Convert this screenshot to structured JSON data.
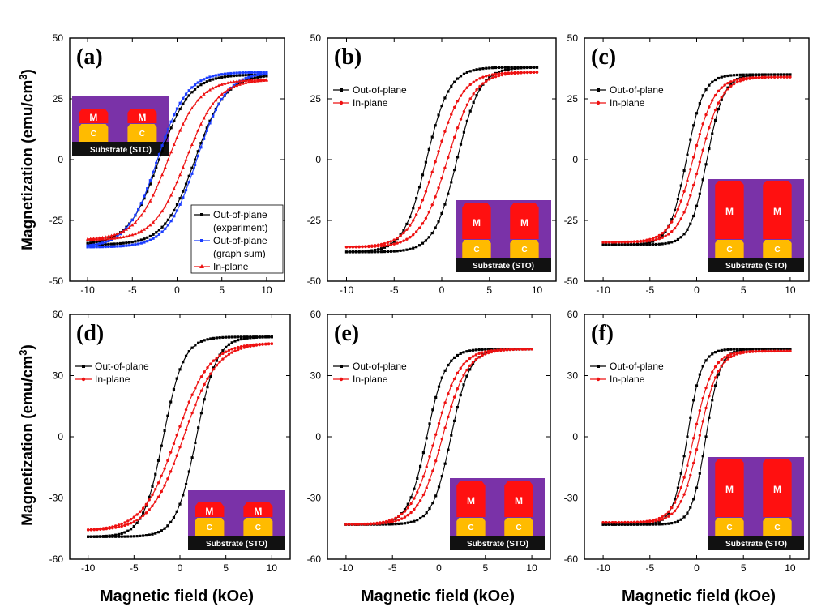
{
  "figure": {
    "ylabel_top": "Magnetization (emu/cm³)",
    "ylabel_bottom": "Magnetization (emu/cm³)",
    "xlabel": "Magnetic field (kOe)",
    "inset_labels": {
      "magnet": "M",
      "core": "C",
      "substrate": "Substrate (STO)"
    },
    "colors": {
      "out_of_plane": "#000000",
      "graph_sum": "#1a3cff",
      "in_plane": "#ee1111",
      "magnet": "#ff1010",
      "core": "#ffbb00",
      "matrix": "#7a32a8",
      "substrate": "#111111"
    }
  },
  "chart_data": [
    {
      "type": "line",
      "panel": "(a)",
      "xlim": [
        -12,
        12
      ],
      "ylim": [
        -50,
        50
      ],
      "xticks": [
        "-10",
        "-5",
        "0",
        "5",
        "10"
      ],
      "yticks": [
        "-50",
        "-25",
        "0",
        "25",
        "50"
      ],
      "inset": {
        "magnet_height": "small",
        "position": "top-left"
      },
      "series": [
        {
          "name": "Out-of-plane (experiment)",
          "legend_lines": [
            "Out-of-plane",
            "(experiment)"
          ],
          "color": "#000000",
          "marker": "square",
          "ms": 35,
          "hc": 2.0,
          "w": 3.4
        },
        {
          "name": "Out-of-plane (graph sum)",
          "legend_lines": [
            "Out-of-plane",
            "(graph sum)"
          ],
          "color": "#1a3cff",
          "marker": "square",
          "ms": 36,
          "hc": 2.2,
          "w": 3.3
        },
        {
          "name": "In-plane",
          "legend_lines": [
            "In-plane"
          ],
          "color": "#ee1111",
          "marker": "triangle",
          "ms": 33,
          "hc": 1.0,
          "w": 3.5
        }
      ]
    },
    {
      "type": "line",
      "panel": "(b)",
      "xlim": [
        -12,
        12
      ],
      "ylim": [
        -50,
        50
      ],
      "xticks": [
        "-10",
        "-5",
        "0",
        "5",
        "10"
      ],
      "yticks": [
        "-50",
        "-25",
        "0",
        "25",
        "50"
      ],
      "inset": {
        "magnet_height": "medium",
        "position": "bottom-right"
      },
      "series": [
        {
          "name": "Out-of-plane",
          "legend_lines": [
            "Out-of-plane"
          ],
          "color": "#000000",
          "marker": "square",
          "ms": 38,
          "hc": 1.6,
          "w": 2.4
        },
        {
          "name": "In-plane",
          "legend_lines": [
            "In-plane"
          ],
          "color": "#ee1111",
          "marker": "circle",
          "ms": 36,
          "hc": 0.6,
          "w": 2.8
        }
      ]
    },
    {
      "type": "line",
      "panel": "(c)",
      "xlim": [
        -12,
        12
      ],
      "ylim": [
        -50,
        50
      ],
      "xticks": [
        "-10",
        "-5",
        "0",
        "5",
        "10"
      ],
      "yticks": [
        "-50",
        "-25",
        "0",
        "25",
        "50"
      ],
      "inset": {
        "magnet_height": "large",
        "position": "bottom-right"
      },
      "series": [
        {
          "name": "Out-of-plane",
          "legend_lines": [
            "Out-of-plane"
          ],
          "color": "#000000",
          "marker": "square",
          "ms": 35,
          "hc": 1.1,
          "w": 1.8
        },
        {
          "name": "In-plane",
          "legend_lines": [
            "In-plane"
          ],
          "color": "#ee1111",
          "marker": "circle",
          "ms": 34,
          "hc": 0.4,
          "w": 2.3
        }
      ]
    },
    {
      "type": "line",
      "panel": "(d)",
      "xlim": [
        -12,
        12
      ],
      "ylim": [
        -60,
        60
      ],
      "xticks": [
        "-10",
        "-5",
        "0",
        "5",
        "10"
      ],
      "yticks": [
        "-60",
        "-30",
        "0",
        "30",
        "60"
      ],
      "inset": {
        "magnet_height": "small",
        "position": "bottom-right"
      },
      "series": [
        {
          "name": "Out-of-plane",
          "legend_lines": [
            "Out-of-plane"
          ],
          "color": "#000000",
          "marker": "square",
          "ms": 49,
          "hc": 1.8,
          "w": 2.2
        },
        {
          "name": "In-plane",
          "legend_lines": [
            "In-plane"
          ],
          "color": "#ee1111",
          "marker": "circle",
          "ms": 46,
          "hc": 0.4,
          "w": 3.6
        }
      ]
    },
    {
      "type": "line",
      "panel": "(e)",
      "xlim": [
        -12,
        12
      ],
      "ylim": [
        -60,
        60
      ],
      "xticks": [
        "-10",
        "-5",
        "0",
        "5",
        "10"
      ],
      "yticks": [
        "-60",
        "-30",
        "0",
        "30",
        "60"
      ],
      "inset": {
        "magnet_height": "medium",
        "position": "bottom-right"
      },
      "series": [
        {
          "name": "Out-of-plane",
          "legend_lines": [
            "Out-of-plane"
          ],
          "color": "#000000",
          "marker": "square",
          "ms": 43,
          "hc": 1.3,
          "w": 2.0
        },
        {
          "name": "In-plane",
          "legend_lines": [
            "In-plane"
          ],
          "color": "#ee1111",
          "marker": "circle",
          "ms": 43,
          "hc": 0.4,
          "w": 2.6
        }
      ]
    },
    {
      "type": "line",
      "panel": "(f)",
      "xlim": [
        -12,
        12
      ],
      "ylim": [
        -60,
        60
      ],
      "xticks": [
        "-10",
        "-5",
        "0",
        "5",
        "10"
      ],
      "yticks": [
        "-60",
        "-30",
        "0",
        "30",
        "60"
      ],
      "inset": {
        "magnet_height": "large",
        "position": "bottom-right"
      },
      "series": [
        {
          "name": "Out-of-plane",
          "legend_lines": [
            "Out-of-plane"
          ],
          "color": "#000000",
          "marker": "square",
          "ms": 43,
          "hc": 1.0,
          "w": 1.5
        },
        {
          "name": "In-plane",
          "legend_lines": [
            "In-plane"
          ],
          "color": "#ee1111",
          "marker": "circle",
          "ms": 42,
          "hc": 0.3,
          "w": 2.0
        }
      ]
    }
  ]
}
